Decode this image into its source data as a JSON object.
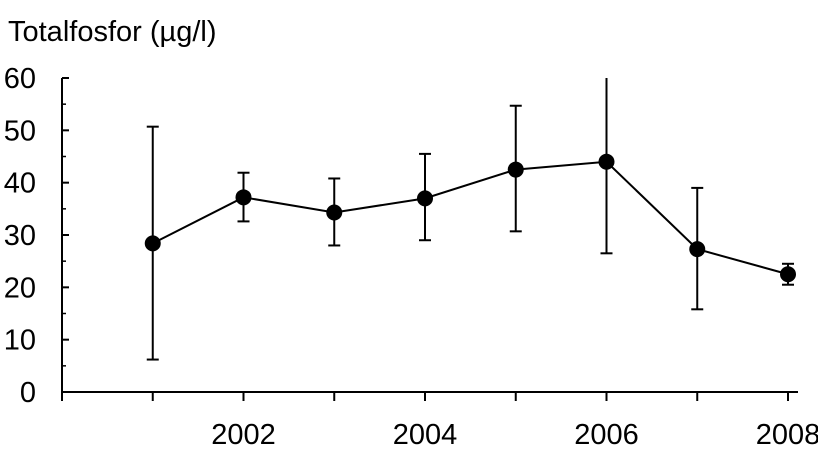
{
  "chart_data": {
    "type": "line",
    "title": "",
    "xlabel": "",
    "ylabel": "Totalfosfor (µg/l)",
    "xlim": [
      2000,
      2008
    ],
    "ylim": [
      0,
      60
    ],
    "x_ticks": [
      2002,
      2004,
      2006,
      2008
    ],
    "x_tick_labels": [
      "2002",
      "2004",
      "2006",
      "2008"
    ],
    "y_ticks": [
      0,
      10,
      20,
      30,
      40,
      50,
      60
    ],
    "y_tick_labels": [
      "0",
      "10",
      "20",
      "30",
      "40",
      "50",
      "60"
    ],
    "grid": false,
    "legend": "none",
    "series": [
      {
        "x": [
          2001,
          2002,
          2003,
          2004,
          2005,
          2006,
          2007,
          2008
        ],
        "y": [
          28.4,
          37.2,
          34.3,
          37.0,
          42.5,
          44.0,
          27.3,
          22.5
        ],
        "error_low": [
          6.2,
          32.6,
          28.0,
          29.0,
          30.7,
          26.5,
          15.8,
          20.5
        ],
        "error_high": [
          50.7,
          41.9,
          40.8,
          45.5,
          54.7,
          60.0,
          39.0,
          24.5
        ],
        "color": "#000000"
      }
    ]
  }
}
